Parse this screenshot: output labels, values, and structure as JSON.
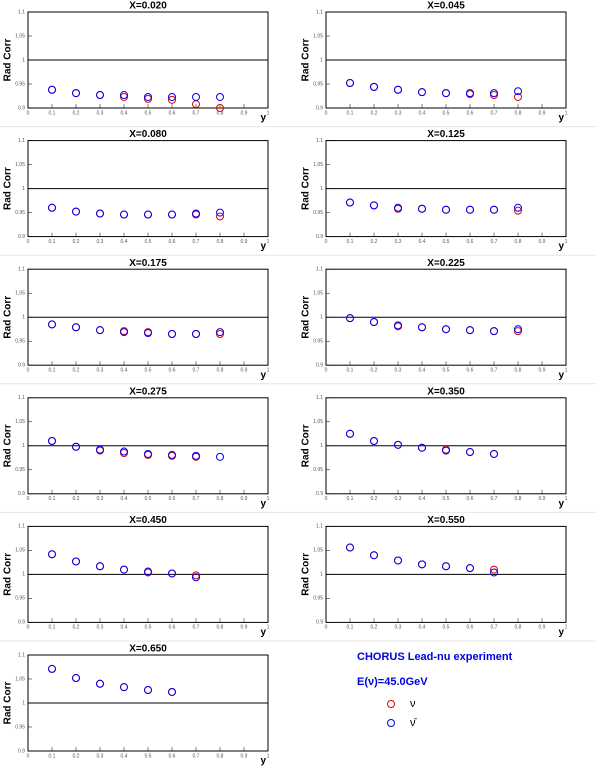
{
  "chart_data": [
    {
      "type": "scatter",
      "title": "X=0.020",
      "xlabel": "y",
      "ylabel": "Rad Corr",
      "x": [
        0.1,
        0.2,
        0.3,
        0.4,
        0.5,
        0.6,
        0.7,
        0.8
      ],
      "xlim": [
        0,
        1
      ],
      "ylim": [
        0.9,
        1.1
      ],
      "xticks": [
        0,
        0.1,
        0.2,
        0.3,
        0.4,
        0.5,
        0.6,
        0.7,
        0.8,
        0.9,
        1
      ],
      "yticks": [
        0.9,
        0.95,
        1,
        1.05,
        1.1
      ],
      "hline": 1,
      "series": [
        {
          "name": "ν",
          "color": "#e00000",
          "values": [
            0.938,
            0.931,
            0.927,
            0.923,
            0.919,
            0.917,
            0.908,
            0.9
          ]
        },
        {
          "name": "ν̄",
          "color": "#0000ff",
          "values": [
            0.938,
            0.931,
            0.927,
            0.927,
            0.923,
            0.923,
            0.923,
            0.923
          ]
        }
      ]
    },
    {
      "type": "scatter",
      "title": "X=0.045",
      "xlabel": "y",
      "ylabel": "Rad Corr",
      "x": [
        0.1,
        0.2,
        0.3,
        0.4,
        0.5,
        0.6,
        0.7,
        0.8
      ],
      "xlim": [
        0,
        1
      ],
      "ylim": [
        0.9,
        1.1
      ],
      "xticks": [
        0,
        0.1,
        0.2,
        0.3,
        0.4,
        0.5,
        0.6,
        0.7,
        0.8,
        0.9,
        1
      ],
      "yticks": [
        0.9,
        0.95,
        1,
        1.05,
        1.1
      ],
      "hline": 1,
      "series": [
        {
          "name": "ν",
          "color": "#e00000",
          "values": [
            0.952,
            0.944,
            0.938,
            0.933,
            0.931,
            0.929,
            0.927,
            0.923
          ]
        },
        {
          "name": "ν̄",
          "color": "#0000ff",
          "values": [
            0.952,
            0.944,
            0.938,
            0.933,
            0.931,
            0.931,
            0.931,
            0.935
          ]
        }
      ]
    },
    {
      "type": "scatter",
      "title": "X=0.080",
      "xlabel": "y",
      "ylabel": "Rad Corr",
      "x": [
        0.1,
        0.2,
        0.3,
        0.4,
        0.5,
        0.6,
        0.7,
        0.8
      ],
      "xlim": [
        0,
        1
      ],
      "ylim": [
        0.9,
        1.1
      ],
      "xticks": [
        0,
        0.1,
        0.2,
        0.3,
        0.4,
        0.5,
        0.6,
        0.7,
        0.8,
        0.9,
        1
      ],
      "yticks": [
        0.9,
        0.95,
        1,
        1.05,
        1.1
      ],
      "hline": 1,
      "series": [
        {
          "name": "ν",
          "color": "#e00000",
          "values": [
            0.96,
            0.952,
            0.948,
            0.946,
            0.946,
            0.946,
            0.946,
            0.942
          ]
        },
        {
          "name": "ν̄",
          "color": "#0000ff",
          "values": [
            0.96,
            0.952,
            0.948,
            0.946,
            0.946,
            0.946,
            0.948,
            0.95
          ]
        }
      ]
    },
    {
      "type": "scatter",
      "title": "X=0.125",
      "xlabel": "y",
      "ylabel": "Rad Corr",
      "x": [
        0.1,
        0.2,
        0.3,
        0.4,
        0.5,
        0.6,
        0.7,
        0.8
      ],
      "xlim": [
        0,
        1
      ],
      "ylim": [
        0.9,
        1.1
      ],
      "xticks": [
        0,
        0.1,
        0.2,
        0.3,
        0.4,
        0.5,
        0.6,
        0.7,
        0.8,
        0.9,
        1
      ],
      "yticks": [
        0.9,
        0.95,
        1,
        1.05,
        1.1
      ],
      "hline": 1,
      "series": [
        {
          "name": "ν",
          "color": "#e00000",
          "values": [
            0.971,
            0.965,
            0.958,
            0.958,
            0.956,
            0.956,
            0.956,
            0.954
          ]
        },
        {
          "name": "ν̄",
          "color": "#0000ff",
          "values": [
            0.971,
            0.965,
            0.96,
            0.958,
            0.956,
            0.956,
            0.956,
            0.96
          ]
        }
      ]
    },
    {
      "type": "scatter",
      "title": "X=0.175",
      "xlabel": "y",
      "ylabel": "Rad Corr",
      "x": [
        0.1,
        0.2,
        0.3,
        0.4,
        0.5,
        0.6,
        0.7,
        0.8
      ],
      "xlim": [
        0,
        1
      ],
      "ylim": [
        0.9,
        1.1
      ],
      "xticks": [
        0,
        0.1,
        0.2,
        0.3,
        0.4,
        0.5,
        0.6,
        0.7,
        0.8,
        0.9,
        1
      ],
      "yticks": [
        0.9,
        0.95,
        1,
        1.05,
        1.1
      ],
      "hline": 1,
      "series": [
        {
          "name": "ν",
          "color": "#e00000",
          "values": [
            0.985,
            0.979,
            0.973,
            0.971,
            0.969,
            0.965,
            0.965,
            0.965
          ]
        },
        {
          "name": "ν̄",
          "color": "#0000ff",
          "values": [
            0.985,
            0.979,
            0.973,
            0.969,
            0.967,
            0.965,
            0.965,
            0.969
          ]
        }
      ]
    },
    {
      "type": "scatter",
      "title": "X=0.225",
      "xlabel": "y",
      "ylabel": "Rad Corr",
      "x": [
        0.1,
        0.2,
        0.3,
        0.4,
        0.5,
        0.6,
        0.7,
        0.8
      ],
      "xlim": [
        0,
        1
      ],
      "ylim": [
        0.9,
        1.1
      ],
      "xticks": [
        0,
        0.1,
        0.2,
        0.3,
        0.4,
        0.5,
        0.6,
        0.7,
        0.8,
        0.9,
        1
      ],
      "yticks": [
        0.9,
        0.95,
        1,
        1.05,
        1.1
      ],
      "hline": 1,
      "series": [
        {
          "name": "ν",
          "color": "#e00000",
          "values": [
            0.998,
            0.99,
            0.981,
            0.979,
            0.975,
            0.973,
            0.971,
            0.971
          ]
        },
        {
          "name": "ν̄",
          "color": "#0000ff",
          "values": [
            0.998,
            0.99,
            0.983,
            0.979,
            0.975,
            0.973,
            0.971,
            0.975
          ]
        }
      ]
    },
    {
      "type": "scatter",
      "title": "X=0.275",
      "xlabel": "y",
      "ylabel": "Rad Corr",
      "x": [
        0.1,
        0.2,
        0.3,
        0.4,
        0.5,
        0.6,
        0.7,
        0.8
      ],
      "xlim": [
        0,
        1
      ],
      "ylim": [
        0.9,
        1.1
      ],
      "xticks": [
        0,
        0.1,
        0.2,
        0.3,
        0.4,
        0.5,
        0.6,
        0.7,
        0.8,
        0.9,
        1
      ],
      "yticks": [
        0.9,
        0.95,
        1,
        1.05,
        1.1
      ],
      "hline": 1,
      "series": [
        {
          "name": "ν",
          "color": "#e00000",
          "values": [
            1.01,
            0.998,
            0.99,
            0.985,
            0.981,
            0.979,
            0.977,
            null
          ]
        },
        {
          "name": "ν̄",
          "color": "#0000ff",
          "values": [
            1.01,
            0.998,
            0.992,
            0.988,
            0.983,
            0.981,
            0.979,
            0.977
          ]
        }
      ]
    },
    {
      "type": "scatter",
      "title": "X=0.350",
      "xlabel": "y",
      "ylabel": "Rad Corr",
      "x": [
        0.1,
        0.2,
        0.3,
        0.4,
        0.5,
        0.6,
        0.7,
        0.8
      ],
      "xlim": [
        0,
        1
      ],
      "ylim": [
        0.9,
        1.1
      ],
      "xticks": [
        0,
        0.1,
        0.2,
        0.3,
        0.4,
        0.5,
        0.6,
        0.7,
        0.8,
        0.9,
        1
      ],
      "yticks": [
        0.9,
        0.95,
        1,
        1.05,
        1.1
      ],
      "hline": 1,
      "series": [
        {
          "name": "ν",
          "color": "#e00000",
          "values": [
            1.025,
            1.01,
            1.002,
            0.996,
            0.992,
            0.987,
            0.983,
            null
          ]
        },
        {
          "name": "ν̄",
          "color": "#0000ff",
          "values": [
            1.025,
            1.01,
            1.002,
            0.996,
            0.99,
            0.987,
            0.983,
            null
          ]
        }
      ]
    },
    {
      "type": "scatter",
      "title": "X=0.450",
      "xlabel": "y",
      "ylabel": "Rad Corr",
      "x": [
        0.1,
        0.2,
        0.3,
        0.4,
        0.5,
        0.6,
        0.7,
        0.8
      ],
      "xlim": [
        0,
        1
      ],
      "ylim": [
        0.9,
        1.1
      ],
      "xticks": [
        0,
        0.1,
        0.2,
        0.3,
        0.4,
        0.5,
        0.6,
        0.7,
        0.8,
        0.9,
        1
      ],
      "yticks": [
        0.9,
        0.95,
        1,
        1.05,
        1.1
      ],
      "hline": 1,
      "series": [
        {
          "name": "ν",
          "color": "#e00000",
          "values": [
            1.042,
            1.027,
            1.017,
            1.01,
            1.004,
            1.002,
            0.998,
            null
          ]
        },
        {
          "name": "ν̄",
          "color": "#0000ff",
          "values": [
            1.042,
            1.027,
            1.017,
            1.01,
            1.006,
            1.002,
            0.994,
            null
          ]
        }
      ]
    },
    {
      "type": "scatter",
      "title": "X=0.550",
      "xlabel": "y",
      "ylabel": "Rad Corr",
      "x": [
        0.1,
        0.2,
        0.3,
        0.4,
        0.5,
        0.6,
        0.7,
        0.8
      ],
      "xlim": [
        0,
        1
      ],
      "ylim": [
        0.9,
        1.1
      ],
      "xticks": [
        0,
        0.1,
        0.2,
        0.3,
        0.4,
        0.5,
        0.6,
        0.7,
        0.8,
        0.9,
        1
      ],
      "yticks": [
        0.9,
        0.95,
        1,
        1.05,
        1.1
      ],
      "hline": 1,
      "series": [
        {
          "name": "ν",
          "color": "#e00000",
          "values": [
            1.056,
            1.04,
            1.029,
            1.021,
            1.017,
            1.013,
            1.01,
            null
          ]
        },
        {
          "name": "ν̄",
          "color": "#0000ff",
          "values": [
            1.056,
            1.04,
            1.029,
            1.021,
            1.017,
            1.013,
            1.004,
            null
          ]
        }
      ]
    },
    {
      "type": "scatter",
      "title": "X=0.650",
      "xlabel": "y",
      "ylabel": "Rad Corr",
      "x": [
        0.1,
        0.2,
        0.3,
        0.4,
        0.5,
        0.6,
        0.7,
        0.8
      ],
      "xlim": [
        0,
        1
      ],
      "ylim": [
        0.9,
        1.1
      ],
      "xticks": [
        0,
        0.1,
        0.2,
        0.3,
        0.4,
        0.5,
        0.6,
        0.7,
        0.8,
        0.9,
        1
      ],
      "yticks": [
        0.9,
        0.95,
        1,
        1.05,
        1.1
      ],
      "hline": 1,
      "series": [
        {
          "name": "ν",
          "color": "#e00000",
          "values": [
            1.071,
            1.052,
            1.04,
            1.033,
            1.027,
            1.023,
            null,
            null
          ]
        },
        {
          "name": "ν̄",
          "color": "#0000ff",
          "values": [
            1.071,
            1.052,
            1.04,
            1.033,
            1.027,
            1.023,
            null,
            null
          ]
        }
      ]
    }
  ],
  "annotations": [
    "CHORUS Lead-nu experiment",
    "E(ν)=45.0GeV"
  ]
}
